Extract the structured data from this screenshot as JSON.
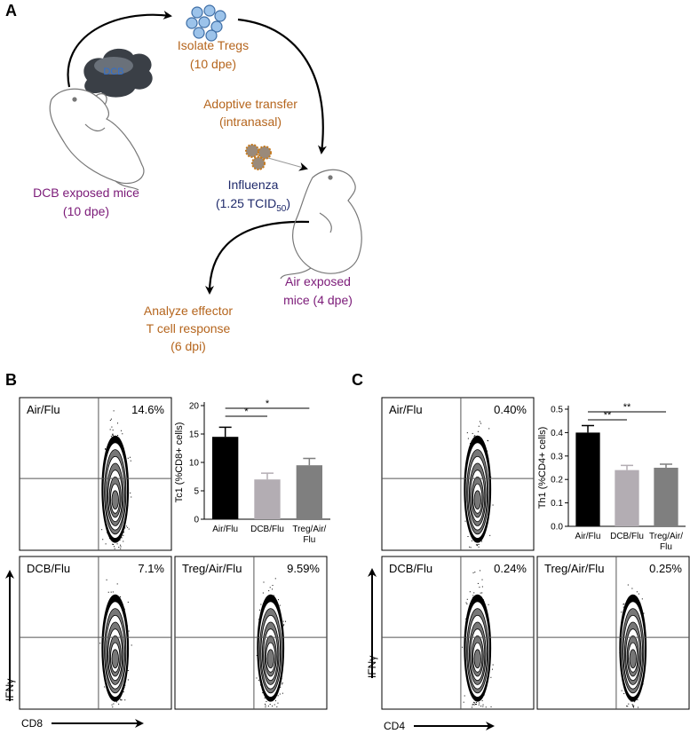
{
  "panel_labels": [
    "A",
    "B",
    "C"
  ],
  "diagram": {
    "dcb_cloud": "DCB",
    "isolate_tregs": [
      "Isolate Tregs",
      "(10 dpe)"
    ],
    "adoptive_transfer": [
      "Adoptive transfer",
      "(intranasal)"
    ],
    "influenza": "Influenza",
    "dose": [
      "(1.25 TCID",
      "50",
      ")"
    ],
    "dcb_mice": [
      "DCB exposed mice",
      "(10 dpe)"
    ],
    "air_mice": [
      "Air exposed",
      "mice (4 dpe)"
    ],
    "analyze": [
      "Analyze effector",
      "T cell response",
      "(6 dpi)"
    ]
  },
  "flow_b": {
    "y_axis": "IFNγ",
    "x_axis": "CD8",
    "plots": [
      {
        "label": "Air/Flu",
        "percent": "14.6%"
      },
      {
        "label": "DCB/Flu",
        "percent": "7.1%"
      },
      {
        "label": "Treg/Air/Flu",
        "percent": "9.59%"
      }
    ]
  },
  "flow_c": {
    "y_axis": "IFNγ",
    "x_axis": "CD4",
    "plots": [
      {
        "label": "Air/Flu",
        "percent": "0.40%"
      },
      {
        "label": "DCB/Flu",
        "percent": "0.24%"
      },
      {
        "label": "Treg/Air/Flu",
        "percent": "0.25%"
      }
    ]
  },
  "chart_data": [
    {
      "type": "bar",
      "ylabel": "Tc1 (%CD8+ cells)",
      "categories": [
        "Air/Flu",
        "DCB/Flu",
        "Treg/Air/Flu"
      ],
      "values": [
        14.5,
        7,
        9.5
      ],
      "errors": [
        1.7,
        1.1,
        1.2
      ],
      "colors": [
        "#000000",
        "#b3adb3",
        "#7f7f7f"
      ],
      "ylim": [
        0,
        20
      ],
      "yticks": [
        0,
        5,
        10,
        15,
        20
      ],
      "significance": [
        {
          "between": [
            0,
            1
          ],
          "label": "*"
        },
        {
          "between": [
            0,
            2
          ],
          "label": "*"
        }
      ]
    },
    {
      "type": "bar",
      "ylabel": "Th1 (%CD4+ cells)",
      "categories": [
        "Air/Flu",
        "DCB/Flu",
        "Treg/Air/Flu"
      ],
      "values": [
        0.4,
        0.24,
        0.25
      ],
      "errors": [
        0.03,
        0.02,
        0.015
      ],
      "colors": [
        "#000000",
        "#b3adb3",
        "#7f7f7f"
      ],
      "ylim": [
        0,
        0.5
      ],
      "yticks": [
        {
          "value": 0,
          "label": "0.0"
        },
        0.1,
        0.2,
        0.3,
        0.4,
        0.5
      ],
      "significance": [
        {
          "between": [
            0,
            1
          ],
          "label": "**"
        },
        {
          "between": [
            0,
            2
          ],
          "label": "**"
        }
      ]
    }
  ]
}
